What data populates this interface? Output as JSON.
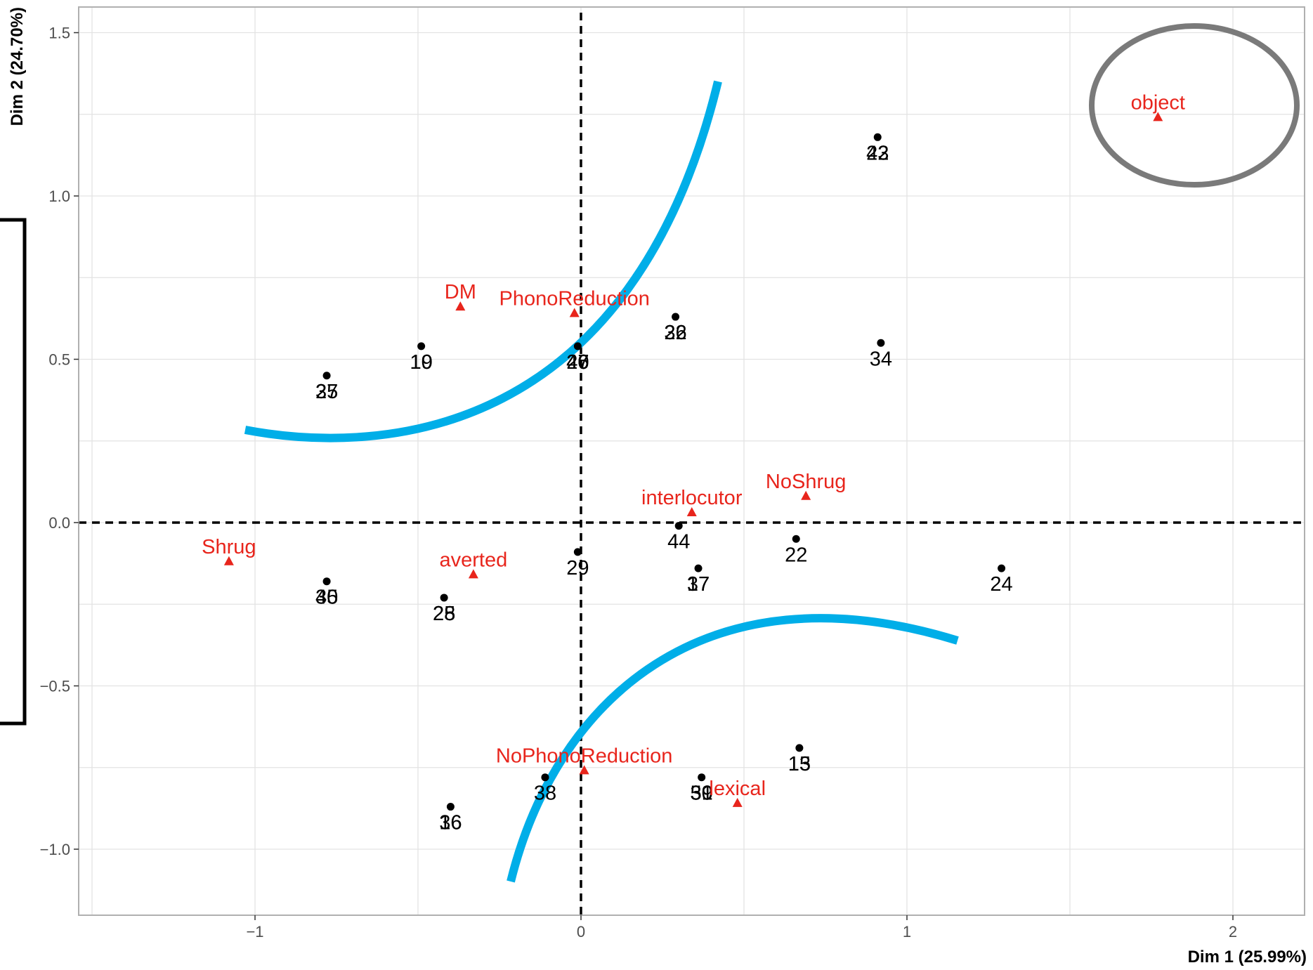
{
  "colors": {
    "individual": "#000000",
    "variable": "#e8251c",
    "grid": "#e3e3e3",
    "panel_border": "#b0b0b0",
    "reference_line": "#000000",
    "curve": "#00aee8",
    "ellipse": "#7a7a7a",
    "bracket": "#000000"
  },
  "icons": {
    "individual_marker": "filled-circle",
    "variable_marker": "filled-triangle"
  },
  "chart_data": {
    "type": "scatter",
    "title": "",
    "xlabel": "Dim 1 (25.99%)",
    "ylabel": "Dim 2 (24.70%)",
    "xlim": [
      -1.52,
      2.22
    ],
    "ylim": [
      -1.2,
      1.58
    ],
    "xticks": [
      -1,
      0,
      1,
      2
    ],
    "xtick_labels": [
      "−1",
      "0",
      "1",
      "2"
    ],
    "yticks": [
      -1.0,
      -0.5,
      0.0,
      0.5,
      1.0,
      1.5
    ],
    "ytick_labels": [
      "−1.0",
      "−0.5",
      "0.0",
      "0.5",
      "1.0",
      "1.5"
    ],
    "grid": true,
    "reference_lines": {
      "x": 0,
      "y": 0,
      "style": "dashed"
    },
    "individuals": [
      {
        "x": -0.78,
        "y": 0.45,
        "labels": [
          "27",
          "35"
        ]
      },
      {
        "x": -0.49,
        "y": 0.54,
        "labels": [
          "10",
          "19"
        ]
      },
      {
        "x": -0.01,
        "y": 0.54,
        "labels": [
          "20",
          "40",
          "46",
          "47"
        ]
      },
      {
        "x": 0.29,
        "y": 0.63,
        "labels": [
          "26",
          "32"
        ]
      },
      {
        "x": 0.91,
        "y": 1.18,
        "labels": [
          "23",
          "42"
        ]
      },
      {
        "x": 0.92,
        "y": 0.55,
        "labels": [
          "34"
        ]
      },
      {
        "x": 0.3,
        "y": -0.01,
        "labels": [
          "44"
        ]
      },
      {
        "x": 0.66,
        "y": -0.05,
        "labels": [
          "22"
        ]
      },
      {
        "x": 1.29,
        "y": -0.14,
        "labels": [
          "24"
        ]
      },
      {
        "x": -0.01,
        "y": -0.09,
        "labels": [
          "29"
        ]
      },
      {
        "x": 0.36,
        "y": -0.14,
        "labels": [
          "17",
          "37"
        ]
      },
      {
        "x": -0.78,
        "y": -0.18,
        "labels": [
          "30",
          "45"
        ]
      },
      {
        "x": -0.42,
        "y": -0.23,
        "labels": [
          "25",
          "28"
        ]
      },
      {
        "x": 0.67,
        "y": -0.69,
        "labels": [
          "13",
          "15"
        ]
      },
      {
        "x": -0.11,
        "y": -0.78,
        "labels": [
          "38"
        ]
      },
      {
        "x": 0.37,
        "y": -0.78,
        "labels": [
          "31",
          "39",
          "50"
        ]
      },
      {
        "x": -0.4,
        "y": -0.87,
        "labels": [
          "16",
          "36"
        ]
      }
    ],
    "variables": [
      {
        "x": -0.37,
        "y": 0.66,
        "label": "DM"
      },
      {
        "x": -0.02,
        "y": 0.64,
        "label": "PhonoReduction"
      },
      {
        "x": 1.77,
        "y": 1.24,
        "label": "object"
      },
      {
        "x": 0.69,
        "y": 0.08,
        "label": "NoShrug"
      },
      {
        "x": 0.34,
        "y": 0.03,
        "label": "interlocutor"
      },
      {
        "x": -1.08,
        "y": -0.12,
        "label": "Shrug"
      },
      {
        "x": -0.33,
        "y": -0.16,
        "label": "averted"
      },
      {
        "x": 0.01,
        "y": -0.76,
        "label": "NoPhonoReduction"
      },
      {
        "x": 0.48,
        "y": -0.86,
        "label": "lexical"
      }
    ]
  }
}
